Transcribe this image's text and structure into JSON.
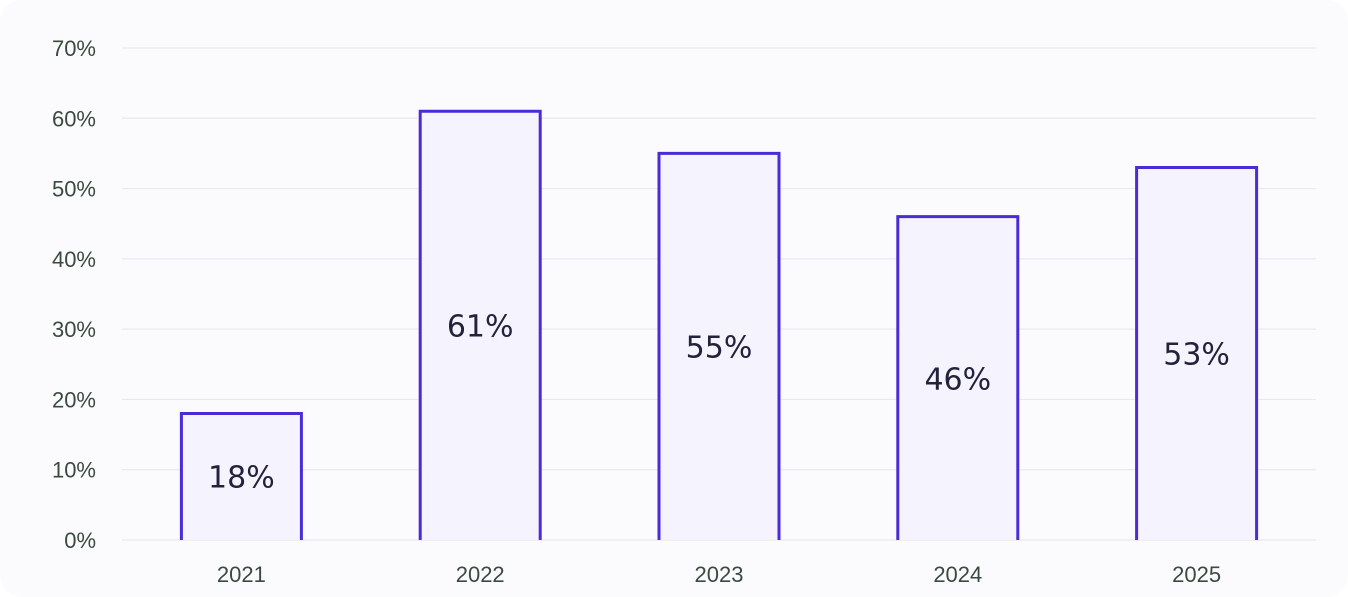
{
  "chart_data": {
    "type": "bar",
    "categories": [
      "2021",
      "2022",
      "2023",
      "2024",
      "2025"
    ],
    "values": [
      18,
      61,
      55,
      46,
      53
    ],
    "data_labels": [
      "18%",
      "61%",
      "55%",
      "46%",
      "53%"
    ],
    "yticks": [
      0,
      10,
      20,
      30,
      40,
      50,
      60,
      70
    ],
    "ytick_labels": [
      "0%",
      "10%",
      "20%",
      "30%",
      "40%",
      "50%",
      "60%",
      "70%"
    ],
    "ylim": [
      0,
      70
    ],
    "title": "",
    "xlabel": "",
    "ylabel": "",
    "grid": true,
    "legend": "none",
    "colors": {
      "bar_fill": "#f4f3fe",
      "bar_stroke": "#4a2bd6",
      "grid": "#e9e9ee",
      "tick_text": "#3b4a3f",
      "label_text": "#22223a"
    }
  }
}
